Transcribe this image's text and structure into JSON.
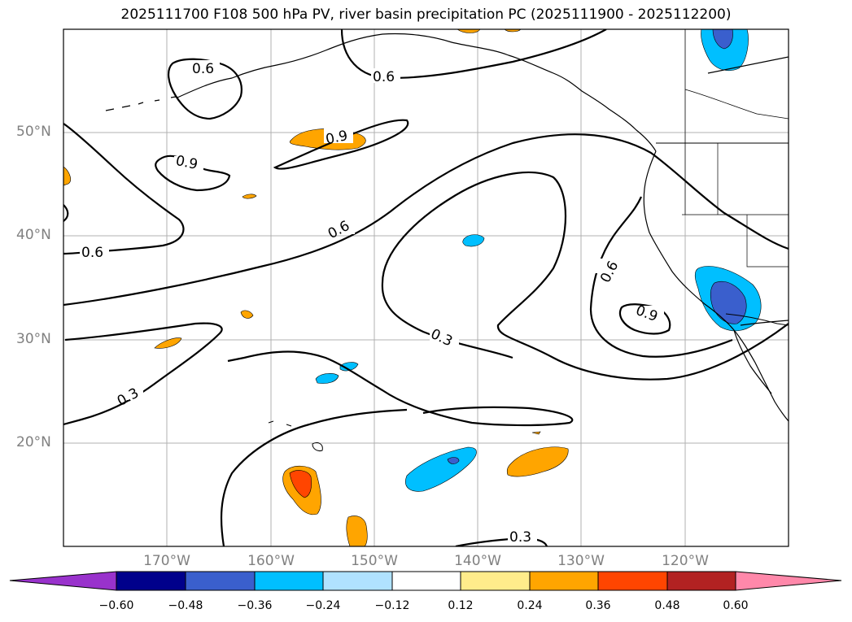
{
  "title": "2025111700 F108 500 hPa PV, river basin precipitation PC (2025111900 - 2025112200)",
  "lat_labels": [
    "50°N",
    "40°N",
    "30°N",
    "20°N"
  ],
  "lon_labels": [
    "170°W",
    "160°W",
    "150°W",
    "140°W",
    "130°W",
    "120°W"
  ],
  "contour_labels": [
    "0.6",
    "0.6",
    "0.9",
    "0.9",
    "0.6",
    "0.6",
    "0.6",
    "0.9",
    "0.3",
    "0.3",
    "0.3"
  ],
  "colorbar": {
    "ticks": [
      "−0.60",
      "−0.48",
      "−0.36",
      "−0.24",
      "−0.12",
      "0.12",
      "0.24",
      "0.36",
      "0.48",
      "0.60"
    ],
    "colors": [
      "#9932cc",
      "#00008b",
      "#3a5fcd",
      "#00bfff",
      "#b0e2ff",
      "#ffffff",
      "#ffec8b",
      "#ffa500",
      "#ff4500",
      "#b22222",
      "#ff88aa"
    ]
  },
  "colors": {
    "positive_fill": "#ffa500",
    "strong_positive_fill": "#ff4500",
    "negative_fill": "#00bfff",
    "strong_negative_fill": "#3a5fcd",
    "gridline": "#b0b0b0",
    "contour": "#000000"
  }
}
